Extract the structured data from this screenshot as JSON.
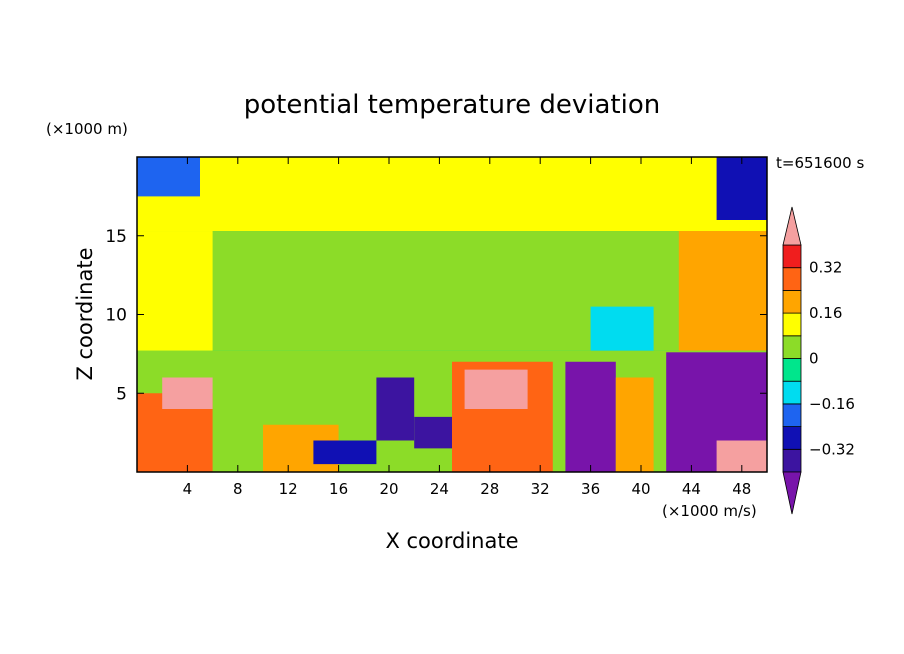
{
  "chart_data": {
    "type": "heatmap",
    "title": "potential temperature deviation",
    "xlabel": "X coordinate",
    "ylabel": "Z coordinate",
    "x_unit_label": "(×1000 m/s)",
    "y_unit_label": "(×1000 m)",
    "time_label": "t=651600 s",
    "xlim": [
      0,
      50
    ],
    "ylim": [
      0,
      20
    ],
    "x_ticks": [
      4,
      8,
      12,
      16,
      20,
      24,
      28,
      32,
      36,
      40,
      44,
      48
    ],
    "x_tick_labels": [
      "4",
      "8",
      "12",
      "16",
      "20",
      "24",
      "28",
      "32",
      "36",
      "40",
      "44",
      "48"
    ],
    "y_ticks": [
      5,
      10,
      15
    ],
    "y_tick_labels": [
      "5",
      "10",
      "15"
    ],
    "colorbar": {
      "boundaries": [
        -0.4,
        -0.32,
        -0.24,
        -0.16,
        -0.08,
        0,
        0.08,
        0.16,
        0.24,
        0.32,
        0.4
      ],
      "tick_values": [
        0.32,
        0.16,
        0,
        -0.16,
        -0.32
      ],
      "tick_labels": [
        "0.32",
        "0.16",
        "0",
        "−0.16",
        "−0.32"
      ],
      "colors": [
        "#3c14a0",
        "#1010b4",
        "#1e64f0",
        "#00dcf0",
        "#00e68c",
        "#8cdc28",
        "#ffff00",
        "#ffa500",
        "#ff6414",
        "#f01e1e"
      ],
      "over_color": "#f5a0a0",
      "under_color": "#7814aa"
    },
    "regions": [
      {
        "x0": 0,
        "x1": 50,
        "z0": 15.3,
        "z1": 20,
        "value": 0.1
      },
      {
        "x0": 0,
        "x1": 5,
        "z0": 17.5,
        "z1": 20,
        "value": -0.18
      },
      {
        "x0": 46,
        "x1": 50,
        "z0": 16,
        "z1": 20,
        "value": -0.25
      },
      {
        "x0": 10,
        "x1": 36,
        "z0": 17.5,
        "z1": 20,
        "value": 0.15
      },
      {
        "x0": 0,
        "x1": 50,
        "z0": 7.7,
        "z1": 15.3,
        "value": 0.02
      },
      {
        "x0": 0,
        "x1": 6,
        "z0": 7.7,
        "z1": 15.3,
        "value": 0.12
      },
      {
        "x0": 43,
        "x1": 50,
        "z0": 7.7,
        "z1": 15.3,
        "value": 0.22
      },
      {
        "x0": 36,
        "x1": 41,
        "z0": 7.7,
        "z1": 10.5,
        "value": -0.15
      },
      {
        "x0": 0,
        "x1": 50,
        "z0": 0,
        "z1": 7.7,
        "value": 0.05
      },
      {
        "x0": 0,
        "x1": 6,
        "z0": 0,
        "z1": 5,
        "value": 0.3
      },
      {
        "x0": 2,
        "x1": 6,
        "z0": 4,
        "z1": 6,
        "value": 0.45
      },
      {
        "x0": 10,
        "x1": 16,
        "z0": 0,
        "z1": 3,
        "value": 0.2
      },
      {
        "x0": 14,
        "x1": 19,
        "z0": 0.5,
        "z1": 2,
        "value": -0.3
      },
      {
        "x0": 19,
        "x1": 22,
        "z0": 2,
        "z1": 6,
        "value": -0.35
      },
      {
        "x0": 22,
        "x1": 26,
        "z0": 1.5,
        "z1": 3.5,
        "value": -0.35
      },
      {
        "x0": 25,
        "x1": 33,
        "z0": 0,
        "z1": 7,
        "value": 0.3
      },
      {
        "x0": 26,
        "x1": 31,
        "z0": 4,
        "z1": 6.5,
        "value": 0.45
      },
      {
        "x0": 34,
        "x1": 38,
        "z0": 0,
        "z1": 7,
        "value": -0.42
      },
      {
        "x0": 38,
        "x1": 41,
        "z0": 0,
        "z1": 6,
        "value": 0.2
      },
      {
        "x0": 42,
        "x1": 50,
        "z0": 0,
        "z1": 7.6,
        "value": -0.45
      },
      {
        "x0": 46,
        "x1": 50,
        "z0": 0,
        "z1": 2,
        "value": 0.45
      }
    ]
  }
}
